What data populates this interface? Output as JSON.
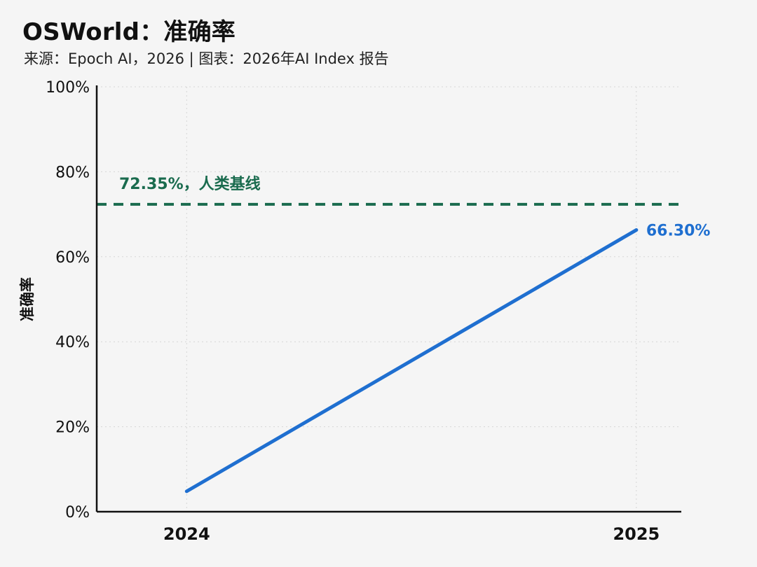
{
  "header": {
    "title": "OSWorld：准确率",
    "subtitle": "来源：Epoch AI，2026 | 图表：2026年AI Index 报告"
  },
  "chart_data": {
    "type": "line",
    "title": "OSWorld：准确率",
    "xlabel": "",
    "ylabel": "准确率",
    "x_ticks": [
      "2024",
      "2025"
    ],
    "y_ticks": [
      "0%",
      "20%",
      "40%",
      "60%",
      "80%",
      "100%"
    ],
    "ylim": [
      0,
      100
    ],
    "grid": true,
    "series": [
      {
        "color": "#1f6fd0",
        "x": [
          2024.0,
          2025.0
        ],
        "y": [
          4.8,
          66.3
        ],
        "end_label": "66.30%"
      }
    ],
    "reference_line": {
      "value": 72.35,
      "label": "72.35%，人类基线",
      "color": "#1a6b4e",
      "style": "dashed"
    }
  }
}
